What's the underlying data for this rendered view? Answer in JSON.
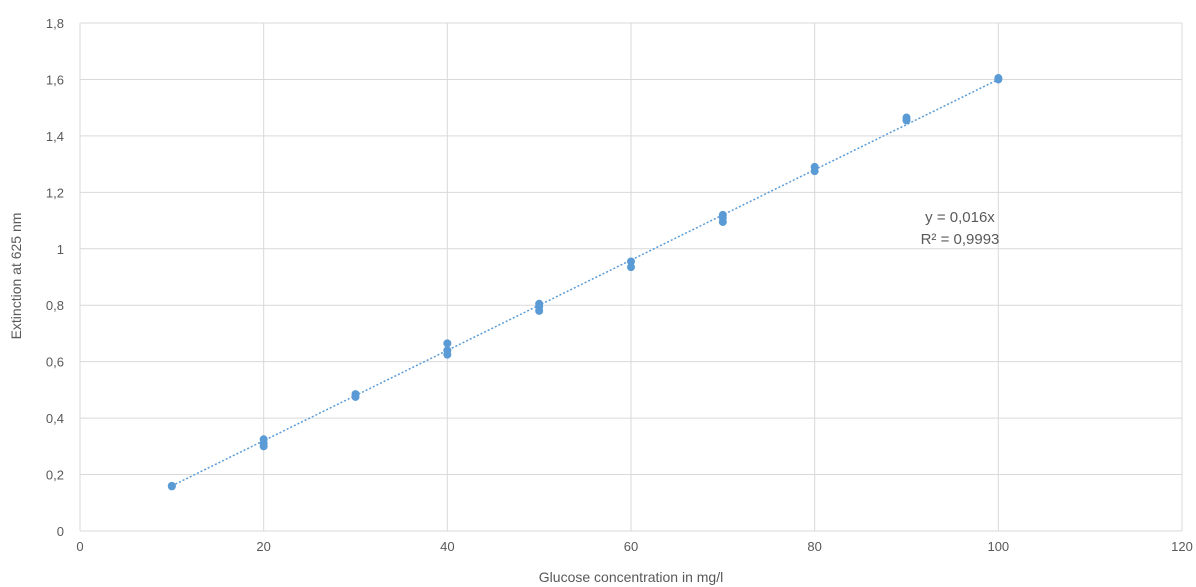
{
  "chart_data": {
    "type": "scatter",
    "title": "",
    "xlabel": "Glucose concentration in mg/l",
    "ylabel": "Extinction at 625 nm",
    "xlim": [
      0,
      120
    ],
    "ylim": [
      0,
      1.8
    ],
    "x_ticks": [
      0,
      20,
      40,
      60,
      80,
      100,
      120
    ],
    "y_ticks": [
      0,
      0.2,
      0.4,
      0.6,
      0.8,
      1,
      1.2,
      1.4,
      1.6,
      1.8
    ],
    "x_tick_labels": [
      "0",
      "20",
      "40",
      "60",
      "80",
      "100",
      "120"
    ],
    "y_tick_labels": [
      "0",
      "0,2",
      "0,4",
      "0,6",
      "0,8",
      "1",
      "1,2",
      "1,4",
      "1,6",
      "1,8"
    ],
    "grid": true,
    "legend": "none",
    "point_color": "#5b9bd5",
    "series": [
      {
        "x": [
          10,
          10,
          20,
          20,
          20,
          30,
          30,
          40,
          40,
          40,
          50,
          50,
          50,
          60,
          60,
          70,
          70,
          70,
          80,
          80,
          90,
          90,
          100,
          100
        ],
        "y": [
          0.16,
          0.158,
          0.325,
          0.31,
          0.3,
          0.485,
          0.475,
          0.665,
          0.64,
          0.625,
          0.805,
          0.795,
          0.78,
          0.955,
          0.935,
          1.12,
          1.11,
          1.095,
          1.29,
          1.275,
          1.465,
          1.455,
          1.605,
          1.6
        ]
      }
    ],
    "trendline": {
      "type": "linear",
      "slope": 0.016,
      "intercept": 0,
      "x_range": [
        10,
        100
      ],
      "color": "#5b9bd5",
      "equation": "y = 0,016x",
      "r_squared": "R² = 0,9993"
    }
  }
}
